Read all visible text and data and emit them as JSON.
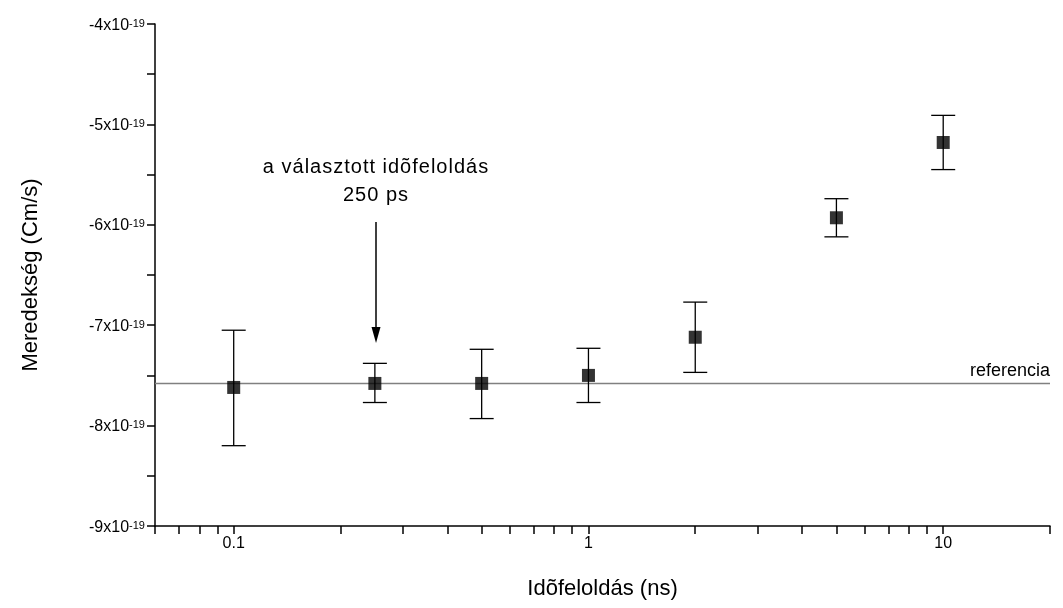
{
  "chart_data": {
    "type": "scatter",
    "xlabel": "Idõfeloldás (ns)",
    "ylabel": "Meredekség (Cm/s)",
    "x": [
      0.1,
      0.25,
      0.5,
      1,
      2,
      5,
      10
    ],
    "series": [
      {
        "color": "#000000",
        "values": [
          -7.62e-19,
          -7.58e-19,
          -7.58e-19,
          -7.5e-19,
          -7.12e-19,
          -5.93e-19,
          -5.18e-19
        ],
        "errors": [
          [
            -8.2e-19,
            -7.05e-19
          ],
          [
            -7.77e-19,
            -7.38e-19
          ],
          [
            -7.93e-19,
            -7.24e-19
          ],
          [
            -7.77e-19,
            -7.23e-19
          ],
          [
            -7.47e-19,
            -6.77e-19
          ],
          [
            -6.12e-19,
            -5.74e-19
          ],
          [
            -5.45e-19,
            -4.91e-19
          ]
        ]
      }
    ],
    "marker": "square",
    "log": "x",
    "grid": false,
    "xlim": [
      0.06,
      20
    ],
    "xticks": [
      {
        "value": 0.06,
        "label": null
      },
      {
        "value": 0.07,
        "label": null
      },
      {
        "value": 0.08,
        "label": null
      },
      {
        "value": 0.09,
        "label": null
      },
      0.1,
      {
        "value": 0.2,
        "label": null
      },
      {
        "value": 0.3,
        "label": null
      },
      {
        "value": 0.4,
        "label": null
      },
      {
        "value": 0.5,
        "label": null
      },
      {
        "value": 0.6,
        "label": null
      },
      {
        "value": 0.7,
        "label": null
      },
      {
        "value": 0.8,
        "label": null
      },
      {
        "value": 0.9,
        "label": null
      },
      1,
      {
        "value": 2,
        "label": null
      },
      {
        "value": 3,
        "label": null
      },
      {
        "value": 4,
        "label": null
      },
      {
        "value": 5,
        "label": null
      },
      {
        "value": 6,
        "label": null
      },
      {
        "value": 7,
        "label": null
      },
      {
        "value": 8,
        "label": null
      },
      {
        "value": 9,
        "label": null
      },
      10,
      {
        "value": 20,
        "label": null
      }
    ],
    "ylim": [
      -9e-19,
      -4e-19
    ],
    "yticks": [
      {
        "value": -9e-19,
        "label": "-9x10$^{-19}$"
      },
      {
        "value": -8.5e-19,
        "label": null
      },
      {
        "value": -8e-19,
        "label": "-8x10$^{-19}$"
      },
      {
        "value": -7.5e-19,
        "label": null
      },
      {
        "value": -7e-19,
        "label": "-7x10$^{-19}$"
      },
      {
        "value": -6.5e-19,
        "label": null
      },
      {
        "value": -6e-19,
        "label": "-6x10$^{-19}$"
      },
      {
        "value": -5.5e-19,
        "label": null
      },
      {
        "value": -5e-19,
        "label": "-5x10$^{-19}$"
      },
      {
        "value": -4.5e-19,
        "label": null
      },
      {
        "value": -4e-19,
        "label": "-4x10$^{-19}$"
      }
    ],
    "ref_lines": [
      {
        "axis": "y",
        "value": -7.58e-19,
        "label": "referencia",
        "color": "#808080"
      }
    ],
    "annotations": [
      "a választott idõfeloldás\n250 ps"
    ]
  }
}
